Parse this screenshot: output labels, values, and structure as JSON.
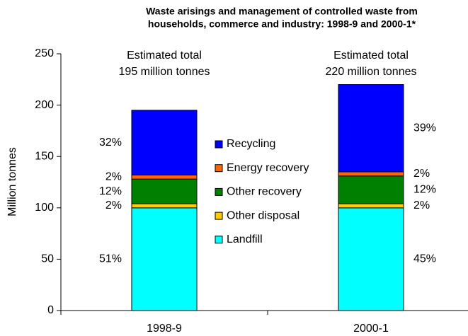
{
  "chart_data": {
    "type": "stacked_bar",
    "title": [
      "Waste arisings and management of controlled waste from",
      "households, commerce and industry: 1998-9 and 2000-1*"
    ],
    "y_label": "Million tonnes",
    "categories": [
      "1998-9",
      "2000-1"
    ],
    "totals": [
      [
        "Estimated total",
        "195 million tonnes"
      ],
      [
        "Estimated total",
        "220 million tonnes"
      ]
    ],
    "series": [
      {
        "name": "Landfill",
        "color": "#00ffff",
        "values": [
          100,
          100
        ],
        "share_labels": [
          "51%",
          "45%"
        ]
      },
      {
        "name": "Other disposal",
        "color": "#ffcc00",
        "values": [
          4,
          4
        ],
        "share_labels": [
          "2%",
          "2%"
        ]
      },
      {
        "name": "Other recovery",
        "color": "#008000",
        "values": [
          24,
          27
        ],
        "share_labels": [
          "12%",
          "12%"
        ]
      },
      {
        "name": "Energy recovery",
        "color": "#ff6600",
        "values": [
          4,
          4
        ],
        "share_labels": [
          "2%",
          "2%"
        ]
      },
      {
        "name": "Recycling",
        "color": "#0000ff",
        "values": [
          63,
          85
        ],
        "share_labels": [
          "32%",
          "39%"
        ]
      }
    ],
    "ylim": [
      0,
      250
    ],
    "yticks": [
      0,
      50,
      100,
      150,
      200,
      250
    ]
  }
}
